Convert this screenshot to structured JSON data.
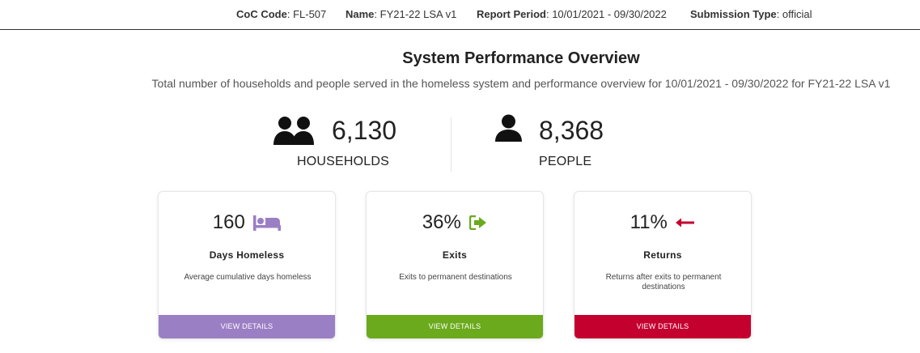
{
  "header": {
    "coc_label": "CoC Code",
    "coc_value": ": FL-507",
    "name_label": "Name",
    "name_value": ": FY21-22 LSA v1",
    "period_label": "Report Period",
    "period_value": ": 10/01/2021 - 09/30/2022",
    "submission_label": "Submission Type",
    "submission_value": ": official"
  },
  "overview": {
    "title": "System Performance Overview",
    "subtitle": "Total number of households and people served in the homeless system and performance overview for 10/01/2021 - 09/30/2022 for FY21-22 LSA v1"
  },
  "stats": {
    "households": {
      "value": "6,130",
      "label": "HOUSEHOLDS",
      "icon": "users-icon"
    },
    "people": {
      "value": "8,368",
      "label": "PEOPLE",
      "icon": "user-icon"
    }
  },
  "cards": [
    {
      "value": "160",
      "title": "Days Homeless",
      "description": "Average cumulative days homeless",
      "button": "VIEW DETAILS",
      "icon": "bed-icon",
      "color": "#9b7fc4"
    },
    {
      "value": "36%",
      "title": "Exits",
      "description": "Exits to permanent destinations",
      "button": "VIEW DETAILS",
      "icon": "exit-icon",
      "color": "#6aaa1c"
    },
    {
      "value": "11%",
      "title": "Returns",
      "description": "Returns after exits to permanent destinations",
      "button": "VIEW DETAILS",
      "icon": "arrow-left-icon",
      "color": "#c4002f"
    }
  ]
}
